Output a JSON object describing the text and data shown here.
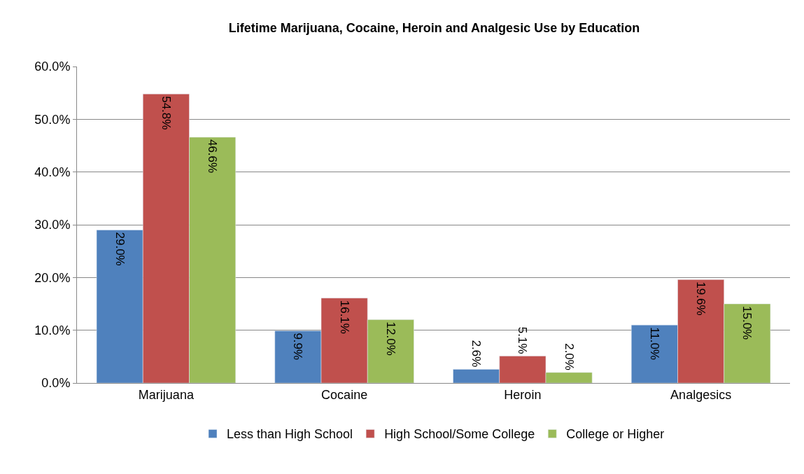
{
  "chart_data": {
    "type": "bar",
    "title": "Lifetime Marijuana, Cocaine, Heroin and Analgesic Use by Education",
    "categories": [
      "Marijuana",
      "Cocaine",
      "Heroin",
      "Analgesics"
    ],
    "series": [
      {
        "name": "Less than High School",
        "color": "#4f81bd",
        "values": [
          29.0,
          9.9,
          2.6,
          11.0
        ],
        "value_labels": [
          "29.0%",
          "9.9%",
          "2.6%",
          "11.0%"
        ]
      },
      {
        "name": "High School/Some College",
        "color": "#c0504d",
        "values": [
          54.8,
          16.1,
          5.1,
          19.6
        ],
        "value_labels": [
          "54.8%",
          "16.1%",
          "5.1%",
          "19.6%"
        ]
      },
      {
        "name": "College or Higher",
        "color": "#9bbb59",
        "values": [
          46.6,
          12.0,
          2.0,
          15.0
        ],
        "value_labels": [
          "46.6%",
          "12.0%",
          "2.0%",
          "15.0%"
        ]
      }
    ],
    "ylim": [
      0,
      60
    ],
    "yticks": [
      {
        "value": 0,
        "label": "0.0%"
      },
      {
        "value": 10,
        "label": "10.0%"
      },
      {
        "value": 20,
        "label": "20.0%"
      },
      {
        "value": 30,
        "label": "30.0%"
      },
      {
        "value": 40,
        "label": "40.0%"
      },
      {
        "value": 50,
        "label": "50.0%"
      },
      {
        "value": 60,
        "label": "60.0%"
      }
    ],
    "grid": "y",
    "legend": "bottom"
  }
}
